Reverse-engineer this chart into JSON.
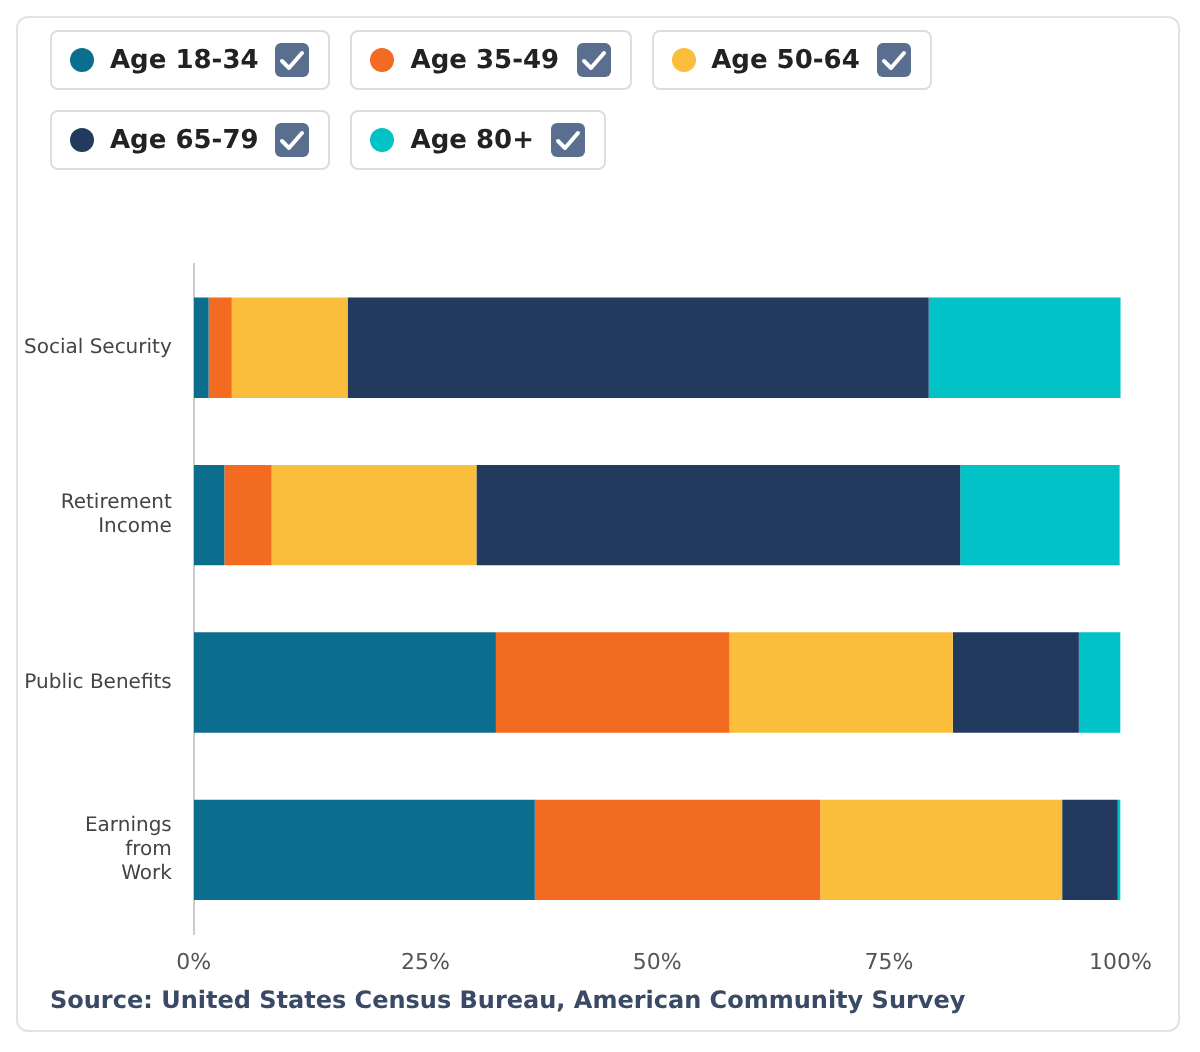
{
  "chart_data": {
    "type": "bar",
    "orientation": "horizontal",
    "stacked": true,
    "categories": [
      "Social Security",
      "Retirement Income",
      "Public Benefits",
      "Earnings from Work"
    ],
    "series": [
      {
        "name": "Age 18-34",
        "color": "#0b6e8f",
        "values": [
          1.6,
          3.3,
          32.6,
          36.8
        ]
      },
      {
        "name": "Age 35-49",
        "color": "#f26b21",
        "values": [
          2.5,
          5.1,
          25.2,
          30.8
        ]
      },
      {
        "name": "Age 50-64",
        "color": "#fbbd3c",
        "values": [
          12.5,
          22.1,
          24.1,
          26.1
        ]
      },
      {
        "name": "Age 65-79",
        "color": "#223a5e",
        "values": [
          62.7,
          52.2,
          13.6,
          6.0
        ]
      },
      {
        "name": "Age 80+",
        "color": "#00c2c7",
        "values": [
          20.8,
          17.2,
          4.5,
          0.3
        ]
      }
    ],
    "xlim": [
      0,
      100
    ],
    "xticks": [
      {
        "value": 0,
        "label": "0%"
      },
      {
        "value": 25,
        "label": "25%"
      },
      {
        "value": 50,
        "label": "50%"
      },
      {
        "value": 75,
        "label": "75%"
      },
      {
        "value": 100,
        "label": "100%"
      }
    ],
    "grid": false,
    "legend": "top",
    "annotations": [
      "Source: United States Census Bureau, American Community Survey"
    ]
  }
}
